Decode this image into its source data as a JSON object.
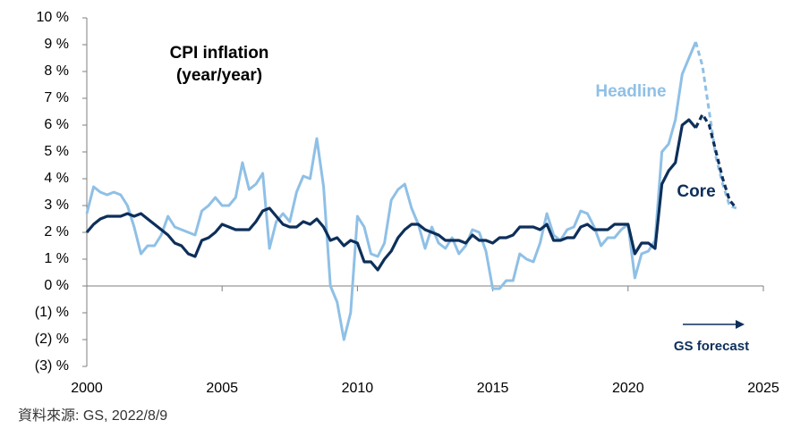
{
  "chart_data": {
    "type": "line",
    "title": "CPI inflation",
    "subtitle": "(year/year)",
    "annotation": "GS forecast",
    "source": "資料來源: GS, 2022/8/9",
    "x": [
      2000,
      2000.25,
      2000.5,
      2000.75,
      2001,
      2001.25,
      2001.5,
      2001.75,
      2002,
      2002.25,
      2002.5,
      2002.75,
      2003,
      2003.25,
      2003.5,
      2003.75,
      2004,
      2004.25,
      2004.5,
      2004.75,
      2005,
      2005.25,
      2005.5,
      2005.75,
      2006,
      2006.25,
      2006.5,
      2006.75,
      2007,
      2007.25,
      2007.5,
      2007.75,
      2008,
      2008.25,
      2008.5,
      2008.75,
      2009,
      2009.25,
      2009.5,
      2009.75,
      2010,
      2010.25,
      2010.5,
      2010.75,
      2011,
      2011.25,
      2011.5,
      2011.75,
      2012,
      2012.25,
      2012.5,
      2012.75,
      2013,
      2013.25,
      2013.5,
      2013.75,
      2014,
      2014.25,
      2014.5,
      2014.75,
      2015,
      2015.25,
      2015.5,
      2015.75,
      2016,
      2016.25,
      2016.5,
      2016.75,
      2017,
      2017.25,
      2017.5,
      2017.75,
      2018,
      2018.25,
      2018.5,
      2018.75,
      2019,
      2019.25,
      2019.5,
      2019.75,
      2020,
      2020.25,
      2020.5,
      2020.75,
      2021,
      2021.25,
      2021.5,
      2021.75,
      2022,
      2022.25,
      2022.5,
      2022.75,
      2023,
      2023.25,
      2023.5,
      2023.75,
      2024
    ],
    "dashed_from": 2022.5,
    "series": [
      {
        "name": "Headline",
        "color": "#8fc0e6",
        "values": [
          2.7,
          3.7,
          3.5,
          3.4,
          3.5,
          3.4,
          3.0,
          2.2,
          1.2,
          1.5,
          1.5,
          1.9,
          2.6,
          2.2,
          2.1,
          2.0,
          1.9,
          2.8,
          3.0,
          3.3,
          3.0,
          3.0,
          3.3,
          4.6,
          3.6,
          3.8,
          4.2,
          1.4,
          2.4,
          2.7,
          2.4,
          3.5,
          4.1,
          4.0,
          5.5,
          3.7,
          0.0,
          -0.6,
          -2.0,
          -1.0,
          2.6,
          2.2,
          1.2,
          1.1,
          1.6,
          3.2,
          3.6,
          3.8,
          2.9,
          2.3,
          1.4,
          2.2,
          1.6,
          1.4,
          1.8,
          1.2,
          1.5,
          2.1,
          2.0,
          1.3,
          -0.1,
          -0.1,
          0.2,
          0.2,
          1.2,
          1.0,
          0.9,
          1.6,
          2.7,
          1.9,
          1.7,
          2.1,
          2.2,
          2.8,
          2.7,
          2.2,
          1.5,
          1.8,
          1.8,
          2.1,
          2.3,
          0.3,
          1.2,
          1.3,
          1.7,
          5.0,
          5.3,
          6.2,
          7.9,
          8.5,
          9.1,
          8.2,
          6.5,
          4.8,
          3.8,
          3.0,
          2.9
        ]
      },
      {
        "name": "Core",
        "color": "#0d2f5a",
        "values": [
          2.0,
          2.3,
          2.5,
          2.6,
          2.6,
          2.6,
          2.7,
          2.6,
          2.7,
          2.5,
          2.3,
          2.1,
          1.9,
          1.6,
          1.5,
          1.2,
          1.1,
          1.7,
          1.8,
          2.0,
          2.3,
          2.2,
          2.1,
          2.1,
          2.1,
          2.4,
          2.8,
          2.9,
          2.6,
          2.3,
          2.2,
          2.2,
          2.4,
          2.3,
          2.5,
          2.2,
          1.7,
          1.8,
          1.5,
          1.7,
          1.6,
          0.9,
          0.9,
          0.6,
          1.0,
          1.3,
          1.8,
          2.1,
          2.3,
          2.3,
          2.1,
          2.0,
          1.9,
          1.7,
          1.7,
          1.7,
          1.6,
          1.9,
          1.7,
          1.7,
          1.6,
          1.8,
          1.8,
          1.9,
          2.2,
          2.2,
          2.2,
          2.1,
          2.3,
          1.7,
          1.7,
          1.8,
          1.8,
          2.2,
          2.3,
          2.1,
          2.1,
          2.1,
          2.3,
          2.3,
          2.3,
          1.2,
          1.6,
          1.6,
          1.4,
          3.8,
          4.3,
          4.6,
          6.0,
          6.2,
          5.9,
          6.4,
          6.0,
          5.0,
          4.0,
          3.2,
          2.9
        ]
      }
    ],
    "xlim": [
      2000,
      2025
    ],
    "xticks": [
      2000,
      2005,
      2010,
      2015,
      2020,
      2025
    ],
    "ylim": [
      -3,
      10
    ],
    "yticks": [
      {
        "value": -3,
        "label": "(3) %"
      },
      {
        "value": -2,
        "label": "(2) %"
      },
      {
        "value": -1,
        "label": "(1) %"
      },
      {
        "value": 0,
        "label": "0 %"
      },
      {
        "value": 1,
        "label": "1 %"
      },
      {
        "value": 2,
        "label": "2 %"
      },
      {
        "value": 3,
        "label": "3 %"
      },
      {
        "value": 4,
        "label": "4 %"
      },
      {
        "value": 5,
        "label": "5 %"
      },
      {
        "value": 6,
        "label": "6 %"
      },
      {
        "value": 7,
        "label": "7 %"
      },
      {
        "value": 8,
        "label": "8 %"
      },
      {
        "value": 9,
        "label": "9 %"
      },
      {
        "value": 10,
        "label": "10 %"
      }
    ]
  }
}
